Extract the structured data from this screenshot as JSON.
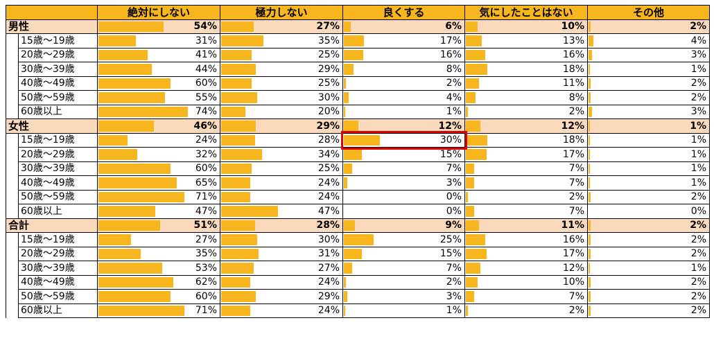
{
  "chart_data": {
    "type": "table",
    "columns": [
      "絶対にしない",
      "極力しない",
      "良くする",
      "気にしたことはない",
      "その他"
    ],
    "groups": [
      {
        "label": "男性",
        "total": [
          "54%",
          "27%",
          "6%",
          "10%",
          "2%"
        ],
        "total_values": [
          54,
          27,
          6,
          10,
          2
        ],
        "rows": [
          {
            "label": "15歳～19歳",
            "cells": [
              "31%",
              "35%",
              "17%",
              "13%",
              "4%"
            ],
            "values": [
              31,
              35,
              17,
              13,
              4
            ]
          },
          {
            "label": "20歳～29歳",
            "cells": [
              "41%",
              "25%",
              "16%",
              "16%",
              "3%"
            ],
            "values": [
              41,
              25,
              16,
              16,
              3
            ]
          },
          {
            "label": "30歳～39歳",
            "cells": [
              "44%",
              "29%",
              "8%",
              "18%",
              "1%"
            ],
            "values": [
              44,
              29,
              8,
              18,
              1
            ]
          },
          {
            "label": "40歳～49歳",
            "cells": [
              "60%",
              "25%",
              "2%",
              "11%",
              "2%"
            ],
            "values": [
              60,
              25,
              2,
              11,
              2
            ]
          },
          {
            "label": "50歳～59歳",
            "cells": [
              "55%",
              "30%",
              "4%",
              "8%",
              "2%"
            ],
            "values": [
              55,
              30,
              4,
              8,
              2
            ]
          },
          {
            "label": "60歳以上",
            "cells": [
              "74%",
              "20%",
              "1%",
              "2%",
              "3%"
            ],
            "values": [
              74,
              20,
              1,
              2,
              3
            ]
          }
        ]
      },
      {
        "label": "女性",
        "total": [
          "46%",
          "29%",
          "12%",
          "12%",
          "1%"
        ],
        "total_values": [
          46,
          29,
          12,
          12,
          1
        ],
        "rows": [
          {
            "label": "15歳～19歳",
            "cells": [
              "24%",
              "28%",
              "30%",
              "18%",
              "1%"
            ],
            "values": [
              24,
              28,
              30,
              18,
              1
            ]
          },
          {
            "label": "20歳～29歳",
            "cells": [
              "32%",
              "34%",
              "15%",
              "17%",
              "1%"
            ],
            "values": [
              32,
              34,
              15,
              17,
              1
            ]
          },
          {
            "label": "30歳～39歳",
            "cells": [
              "60%",
              "25%",
              "7%",
              "7%",
              "1%"
            ],
            "values": [
              60,
              25,
              7,
              7,
              1
            ]
          },
          {
            "label": "40歳～49歳",
            "cells": [
              "65%",
              "24%",
              "3%",
              "7%",
              "1%"
            ],
            "values": [
              65,
              24,
              3,
              7,
              1
            ]
          },
          {
            "label": "50歳～59歳",
            "cells": [
              "71%",
              "24%",
              "0%",
              "2%",
              "2%"
            ],
            "values": [
              71,
              24,
              0,
              2,
              2
            ]
          },
          {
            "label": "60歳以上",
            "cells": [
              "47%",
              "47%",
              "0%",
              "7%",
              "0%"
            ],
            "values": [
              47,
              47,
              0,
              7,
              0
            ]
          }
        ]
      },
      {
        "label": "合計",
        "total": [
          "51%",
          "28%",
          "9%",
          "11%",
          "2%"
        ],
        "total_values": [
          51,
          28,
          9,
          11,
          2
        ],
        "rows": [
          {
            "label": "15歳～19歳",
            "cells": [
              "27%",
              "30%",
              "25%",
              "16%",
              "2%"
            ],
            "values": [
              27,
              30,
              25,
              16,
              2
            ]
          },
          {
            "label": "20歳～29歳",
            "cells": [
              "35%",
              "31%",
              "15%",
              "17%",
              "2%"
            ],
            "values": [
              35,
              31,
              15,
              17,
              2
            ]
          },
          {
            "label": "30歳～39歳",
            "cells": [
              "53%",
              "27%",
              "7%",
              "12%",
              "1%"
            ],
            "values": [
              53,
              27,
              7,
              12,
              1
            ]
          },
          {
            "label": "40歳～49歳",
            "cells": [
              "62%",
              "24%",
              "2%",
              "10%",
              "2%"
            ],
            "values": [
              62,
              24,
              2,
              10,
              2
            ]
          },
          {
            "label": "50歳～59歳",
            "cells": [
              "60%",
              "29%",
              "3%",
              "7%",
              "2%"
            ],
            "values": [
              60,
              29,
              3,
              7,
              2
            ]
          },
          {
            "label": "60歳以上",
            "cells": [
              "71%",
              "24%",
              "1%",
              "2%",
              "2%"
            ],
            "values": [
              71,
              24,
              1,
              2,
              2
            ]
          }
        ]
      }
    ],
    "highlight": {
      "group": 1,
      "row": 0,
      "column": 2
    },
    "colors": {
      "bar": "#f7b51e",
      "header": "#f7b51e",
      "group_row": "#fbd9bd",
      "highlight": "#e00000"
    }
  }
}
